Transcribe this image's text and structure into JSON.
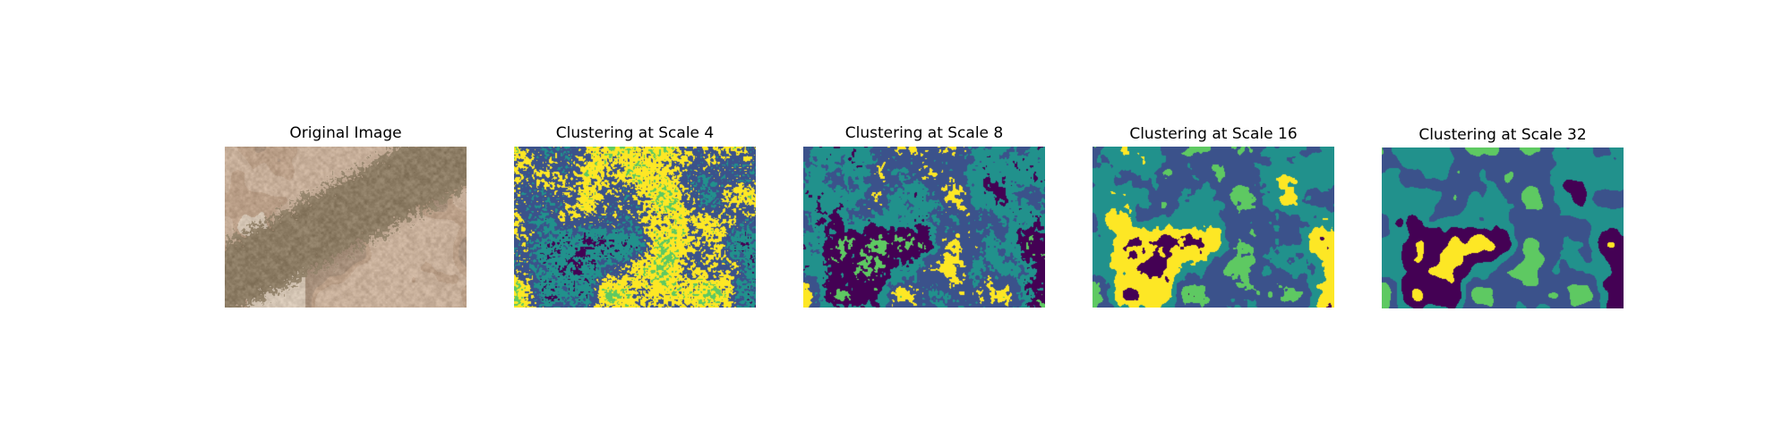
{
  "figure": {
    "panels": [
      {
        "title": "Original Image",
        "kind": "photo"
      },
      {
        "title": "Clustering at Scale 4",
        "kind": "cluster",
        "scale": 4
      },
      {
        "title": "Clustering at Scale 8",
        "kind": "cluster",
        "scale": 8
      },
      {
        "title": "Clustering at Scale 16",
        "kind": "cluster",
        "scale": 16
      },
      {
        "title": "Clustering at Scale 32",
        "kind": "cluster",
        "scale": 32
      }
    ],
    "colormap": [
      "#440154",
      "#3b528b",
      "#21918c",
      "#5ec962",
      "#fde725"
    ],
    "photo_palette": [
      "#c5ad98",
      "#b89d86",
      "#a68f7b",
      "#d3c4b3",
      "#8a7a62",
      "#9aa48a"
    ]
  }
}
